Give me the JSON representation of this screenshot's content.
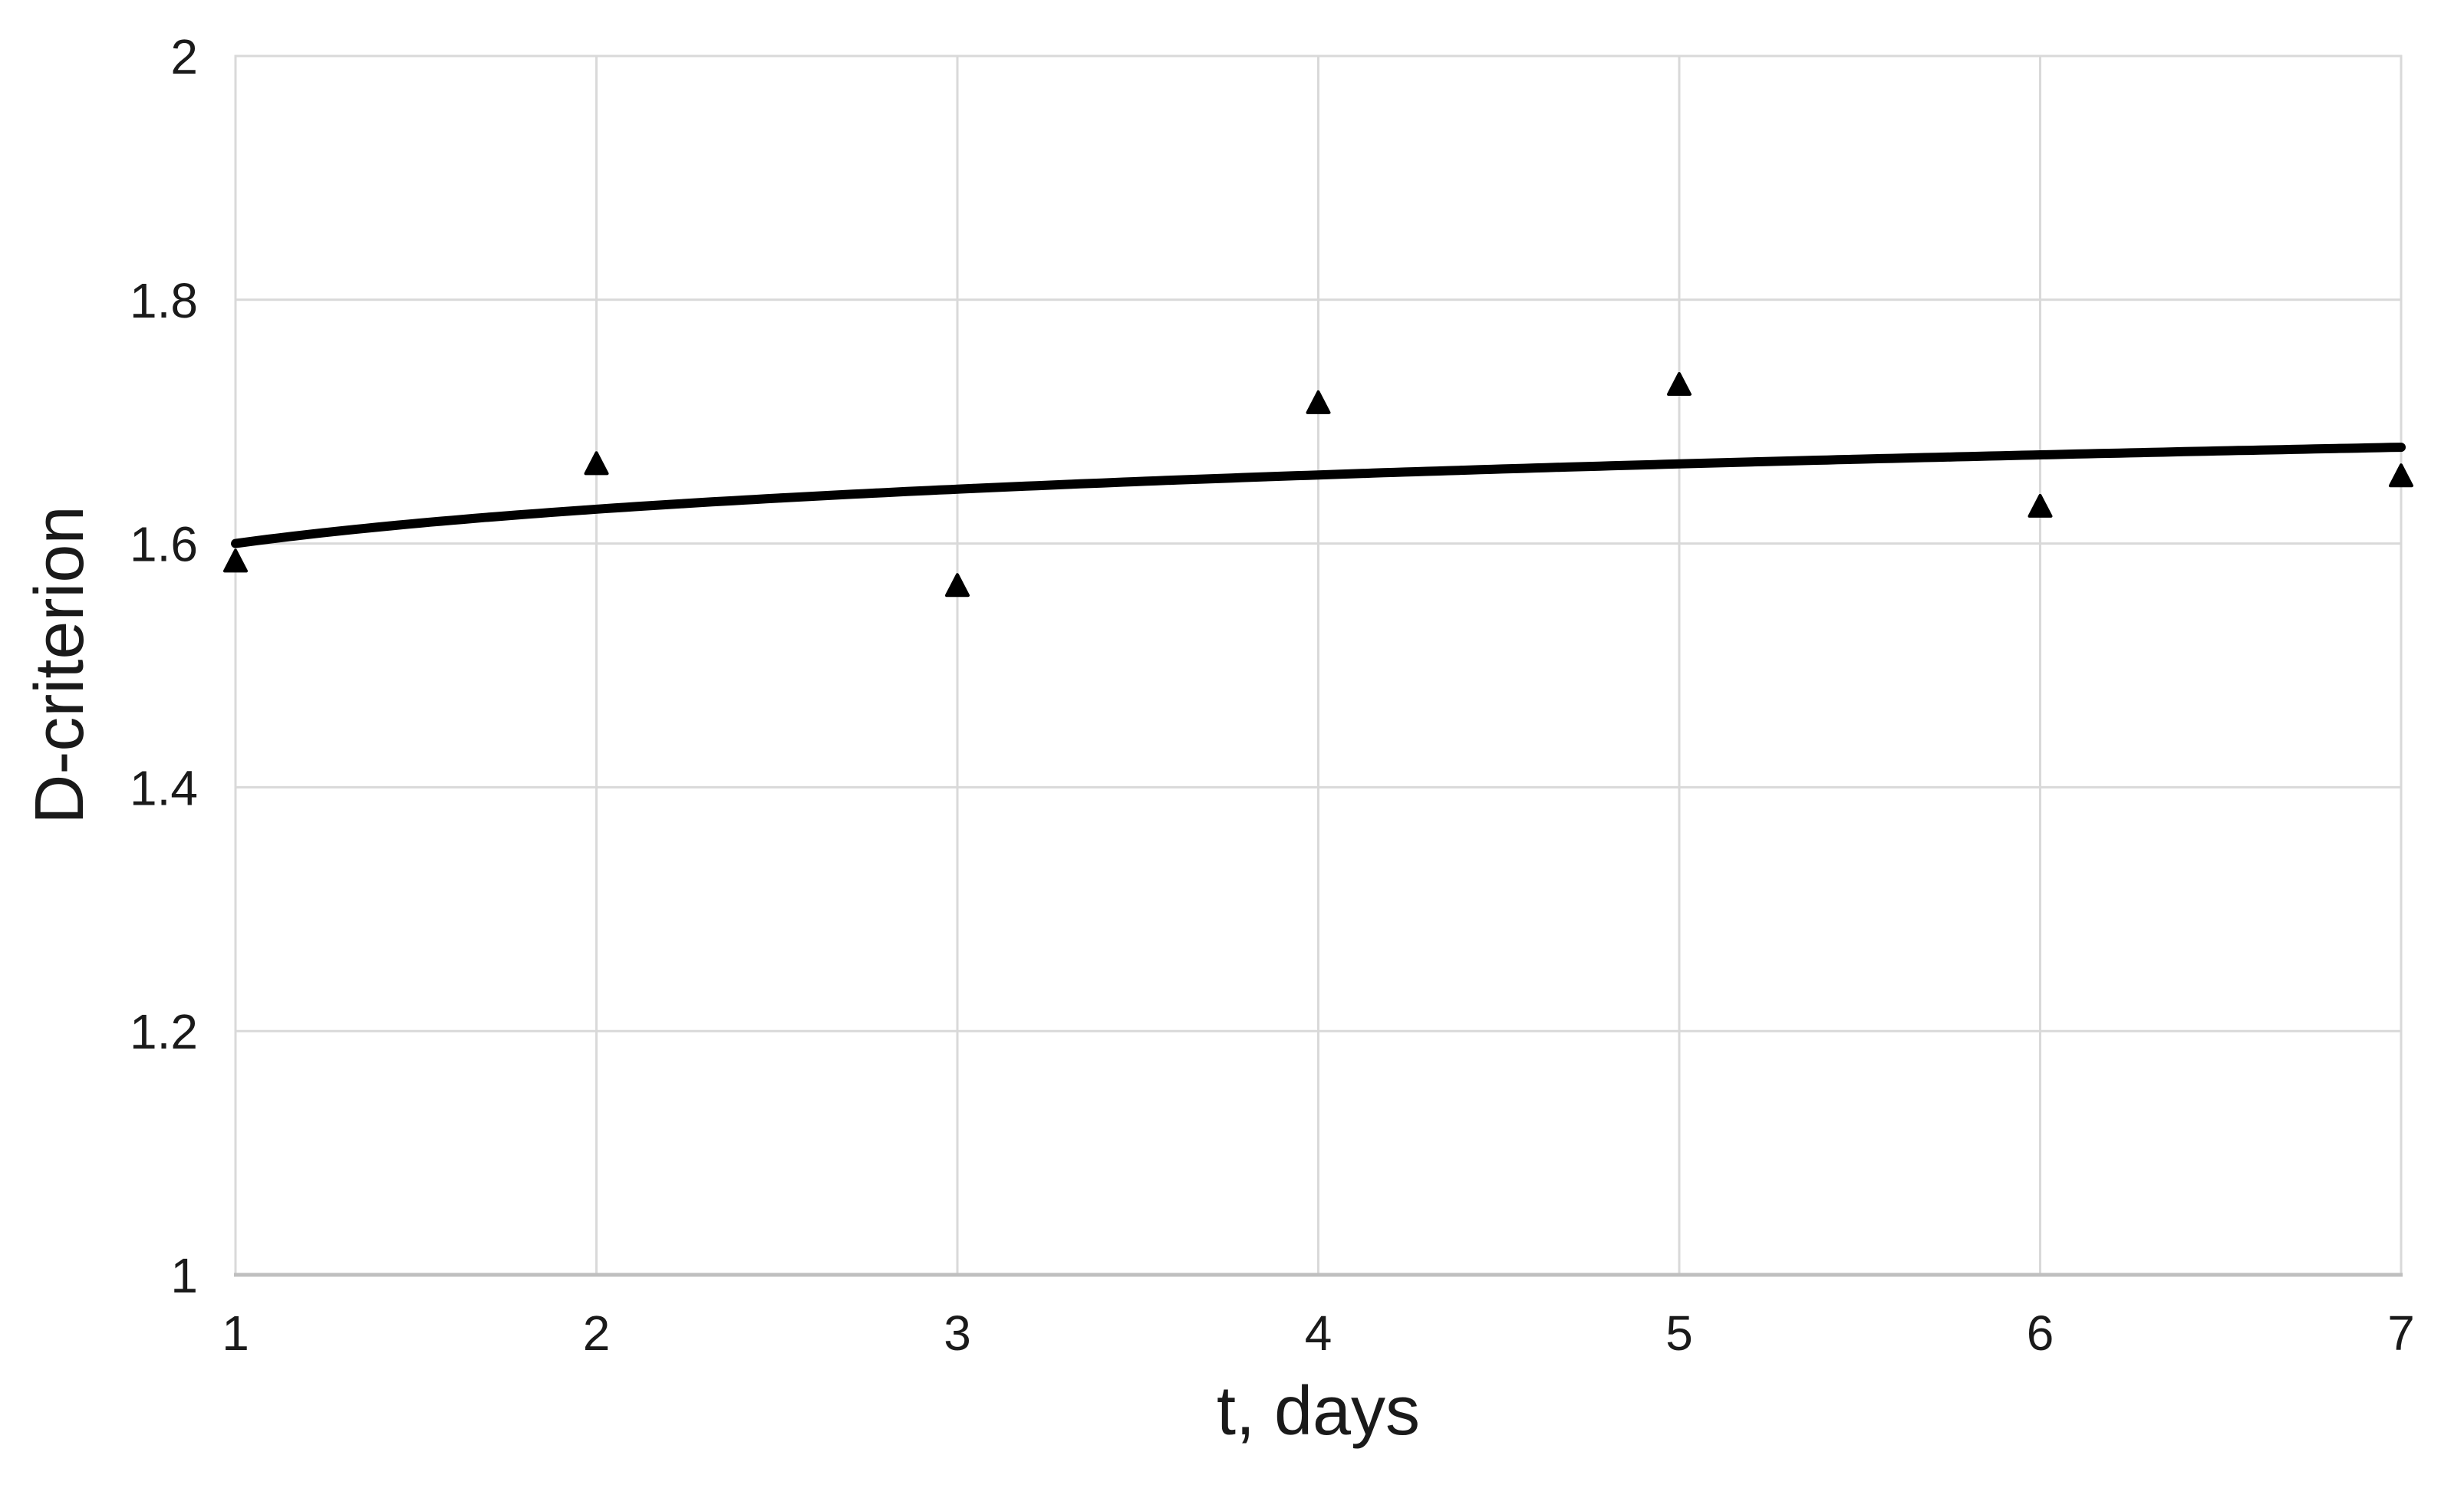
{
  "page": {
    "background": "#ffffff"
  },
  "chart_data": {
    "type": "scatter",
    "title": "",
    "xlabel": "t, days",
    "ylabel": "D-criterion",
    "x": [
      1,
      2,
      3,
      4,
      5,
      6,
      7
    ],
    "series": [
      {
        "name": "D-criterion observations",
        "marker": "triangle-up",
        "marker_color": "#000000",
        "marker_size": 28,
        "y": [
          1.585,
          1.665,
          1.565,
          1.715,
          1.73,
          1.63,
          1.655
        ]
      }
    ],
    "trendline": {
      "type": "logarithmic",
      "a": 1.6,
      "b": 0.0406,
      "formula": "y = 1.600 + 0.0406*ln(t)",
      "color": "#000000",
      "width": 12
    },
    "xlim": [
      1,
      7
    ],
    "ylim": [
      1,
      2
    ],
    "x_ticks": [
      "1",
      "2",
      "3",
      "4",
      "5",
      "6",
      "7"
    ],
    "x_tick_values": [
      1,
      2,
      3,
      4,
      5,
      6,
      7
    ],
    "y_ticks": [
      "1",
      "1.2",
      "1.4",
      "1.6",
      "1.8",
      "2"
    ],
    "y_tick_values": [
      1,
      1.2,
      1.4,
      1.6,
      1.8,
      2
    ],
    "grid": true,
    "legend_position": "none",
    "colors": {
      "grid": "#d9d9d9",
      "plot_border": "#d9d9d9",
      "bottom_axis": "#bfbfbf",
      "tick_text": "#1a1a1a",
      "title_text": "#1a1a1a"
    }
  }
}
